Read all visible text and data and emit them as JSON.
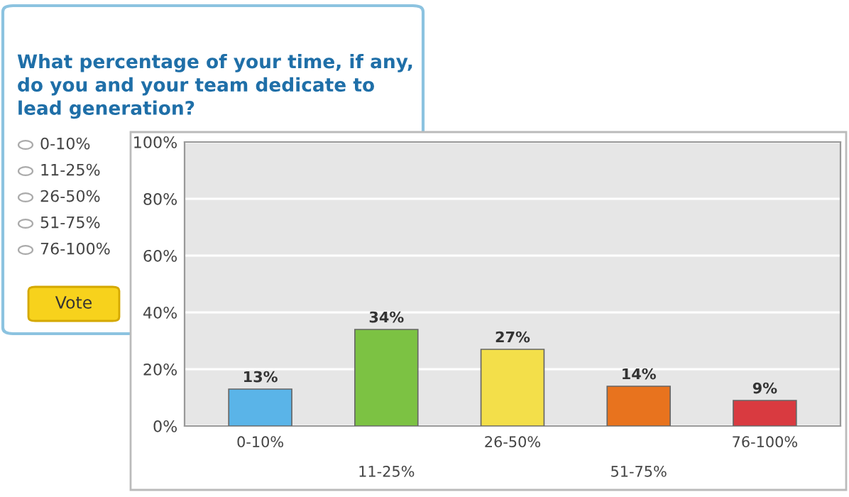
{
  "chart_data": {
    "type": "bar",
    "title": "What percentage of your time, if any, do you and your team dedicate to lead generation?",
    "categories": [
      "0-10%",
      "11-25%",
      "26-50%",
      "51-75%",
      "76-100%"
    ],
    "values": [
      13,
      34,
      27,
      14,
      9
    ],
    "colors": [
      "#5ab4e8",
      "#7cc243",
      "#f3df4a",
      "#e8731e",
      "#d93a40"
    ],
    "value_labels": [
      "13%",
      "34%",
      "27%",
      "14%",
      "9%"
    ],
    "ylim": [
      0,
      100
    ],
    "yticks": [
      {
        "value": 0,
        "label": "0%"
      },
      {
        "value": 20,
        "label": "20%"
      },
      {
        "value": 40,
        "label": "40%"
      },
      {
        "value": 60,
        "label": "60%"
      },
      {
        "value": 80,
        "label": "80%"
      },
      {
        "value": 100,
        "label": "100%"
      }
    ],
    "grid": "y",
    "annotations": [
      "0-10%",
      "11-25%",
      "26-50%",
      "51-75%",
      "76-100%",
      "Vote"
    ]
  }
}
